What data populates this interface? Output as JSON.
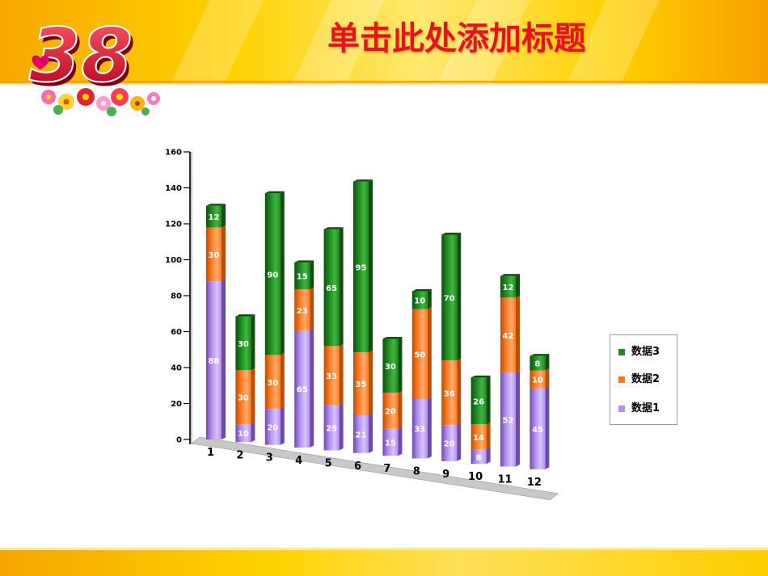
{
  "slide": {
    "title": "单击此处添加标题",
    "logo_text": "38"
  },
  "colors": {
    "series1": "#b48ef0",
    "series2": "#ff7a1e",
    "series3": "#1f8a1f",
    "title": "#e4141e"
  },
  "chart_data": {
    "type": "bar",
    "stacked": true,
    "three_d": true,
    "categories": [
      "1",
      "2",
      "3",
      "4",
      "5",
      "6",
      "7",
      "8",
      "9",
      "10",
      "11",
      "12"
    ],
    "series": [
      {
        "name": "数据1",
        "values": [
          88,
          10,
          20,
          65,
          25,
          21,
          15,
          33,
          20,
          8,
          52,
          45
        ]
      },
      {
        "name": "数据2",
        "values": [
          30,
          30,
          30,
          23,
          33,
          35,
          20,
          50,
          36,
          14,
          42,
          10
        ]
      },
      {
        "name": "数据3",
        "values": [
          12,
          30,
          90,
          15,
          65,
          95,
          30,
          10,
          70,
          26,
          12,
          8
        ]
      }
    ],
    "ylim": [
      0,
      160
    ],
    "yticks": [
      "0",
      "20",
      "40",
      "60",
      "80",
      "100",
      "120",
      "140",
      "160"
    ],
    "legend": [
      "数据3",
      "数据2",
      "数据1"
    ],
    "legend_position": "right"
  }
}
